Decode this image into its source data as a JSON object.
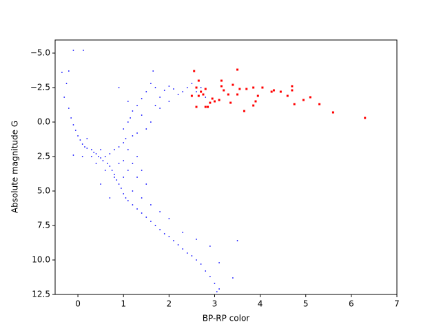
{
  "chart_data": {
    "type": "scatter",
    "xlabel": "BP-RP color",
    "ylabel": "Absolute magnitude G",
    "xlim": [
      -0.5,
      7
    ],
    "ylim": [
      12.5,
      -5.95
    ],
    "xticks": [
      0,
      1,
      2,
      3,
      4,
      5,
      6,
      7
    ],
    "yticks": [
      {
        "value": -5,
        "label": "−5.0"
      },
      {
        "value": -2.5,
        "label": "−2.5"
      },
      {
        "value": 0,
        "label": "0.0"
      },
      2.5,
      {
        "value": 5,
        "label": "5.0"
      },
      7.5,
      {
        "value": 10,
        "label": "10.0"
      },
      12.5
    ],
    "series": [
      {
        "color": "#0000ff",
        "x": [
          -0.35,
          -0.2,
          -0.1,
          0.12,
          -0.25,
          -0.3,
          -0.2,
          -0.15,
          -0.1,
          -0.05,
          0,
          0.05,
          0.1,
          0.15,
          0.2,
          0.3,
          0.35,
          0.4,
          0.45,
          0.5,
          0.55,
          0.6,
          0.65,
          0.7,
          0.75,
          0.8,
          0.85,
          0.9,
          0.95,
          1.0,
          1.05,
          1.1,
          1.2,
          1.3,
          1.4,
          1.5,
          1.6,
          1.7,
          1.8,
          1.9,
          2.0,
          2.1,
          2.2,
          2.3,
          2.4,
          2.5,
          2.6,
          2.7,
          2.8,
          2.9,
          3.0,
          3.1,
          3.05,
          3.4,
          3.5,
          2.9,
          3.1,
          2.6,
          2.3,
          2.0,
          1.8,
          1.6,
          0.7,
          0.5,
          0.4,
          0.3,
          0.2,
          0.1,
          -0.1,
          0.8,
          0.9,
          1.0,
          1.05,
          1.0,
          1.1,
          1.15,
          1.2,
          1.3,
          1.4,
          1.5,
          1.6,
          1.65,
          1.7,
          1.8,
          1.9,
          2.0,
          2.1,
          2.2,
          2.3,
          2.4,
          2.5,
          2.6,
          2.7,
          2.8,
          1.2,
          1.3,
          1.1,
          1.2,
          1.3,
          1.4,
          1.5,
          1.3,
          1.1,
          0.9,
          0.8,
          0.6,
          1.0,
          1.2,
          1.4,
          0.9,
          1.5,
          1.6,
          1.8,
          2.0,
          1.4,
          1.7,
          0.5,
          0.7,
          1.0,
          1.1
        ],
        "values": [
          -3.6,
          -3.7,
          -5.2,
          -5.2,
          -2.8,
          -1.8,
          -1.0,
          -0.3,
          0.2,
          0.6,
          1.0,
          1.3,
          1.6,
          1.8,
          1.9,
          2.0,
          2.2,
          2.3,
          2.5,
          2.6,
          2.8,
          2.5,
          3.0,
          3.2,
          3.5,
          3.8,
          4.2,
          4.5,
          4.8,
          5.2,
          5.5,
          5.7,
          6.0,
          6.3,
          6.6,
          6.9,
          7.2,
          7.5,
          7.8,
          8.1,
          8.3,
          8.6,
          8.9,
          9.2,
          9.5,
          9.7,
          10.0,
          10.3,
          10.8,
          11.2,
          11.7,
          12.1,
          12.3,
          11.3,
          8.6,
          9.0,
          10.2,
          8.5,
          8.0,
          7.0,
          6.5,
          6.0,
          5.5,
          4.5,
          3.0,
          2.5,
          1.2,
          2.5,
          2.4,
          2.0,
          1.8,
          1.5,
          1.2,
          0.5,
          0.0,
          -0.3,
          -0.8,
          -1.2,
          -1.7,
          -2.2,
          -2.8,
          -3.7,
          -2.5,
          -1.8,
          -2.3,
          -2.6,
          -2.4,
          -2.0,
          -2.2,
          -2.5,
          -2.8,
          -2.2,
          -2.5,
          -1.8,
          1.0,
          0.8,
          2.0,
          3.0,
          2.5,
          3.5,
          4.5,
          4.0,
          3.5,
          3.0,
          4.0,
          3.5,
          4.0,
          5.0,
          5.5,
          -2.5,
          0.5,
          0.0,
          -1.0,
          -1.5,
          -0.5,
          -1.2,
          2.0,
          2.3,
          2.8,
          -1.5
        ]
      },
      {
        "color": "#ff0000",
        "x": [
          2.55,
          2.6,
          2.65,
          2.7,
          2.75,
          2.8,
          2.85,
          2.9,
          2.95,
          3.0,
          3.1,
          3.15,
          3.2,
          3.3,
          3.35,
          3.4,
          3.5,
          3.5,
          3.55,
          3.65,
          3.7,
          3.85,
          3.9,
          3.95,
          4.05,
          4.25,
          4.3,
          4.45,
          4.6,
          4.7,
          4.75,
          4.95,
          5.1,
          5.3,
          5.6,
          6.3,
          2.8,
          2.6,
          3.15,
          3.85,
          4.7,
          2.5,
          2.65
        ],
        "values": [
          -3.7,
          -2.5,
          -3.0,
          -2.2,
          -2.0,
          -2.4,
          -1.1,
          -1.4,
          -1.7,
          -1.5,
          -1.6,
          -3.0,
          -2.3,
          -2.0,
          -1.4,
          -2.7,
          -3.8,
          -2.0,
          -2.4,
          -0.8,
          -2.4,
          -2.5,
          -1.5,
          -1.9,
          -2.5,
          -2.2,
          -2.3,
          -2.2,
          -1.9,
          -2.6,
          -1.3,
          -1.6,
          -1.8,
          -1.3,
          -0.7,
          -0.3,
          -1.1,
          -1.1,
          -2.6,
          -1.2,
          -2.3,
          -1.9,
          -1.9
        ]
      }
    ]
  }
}
